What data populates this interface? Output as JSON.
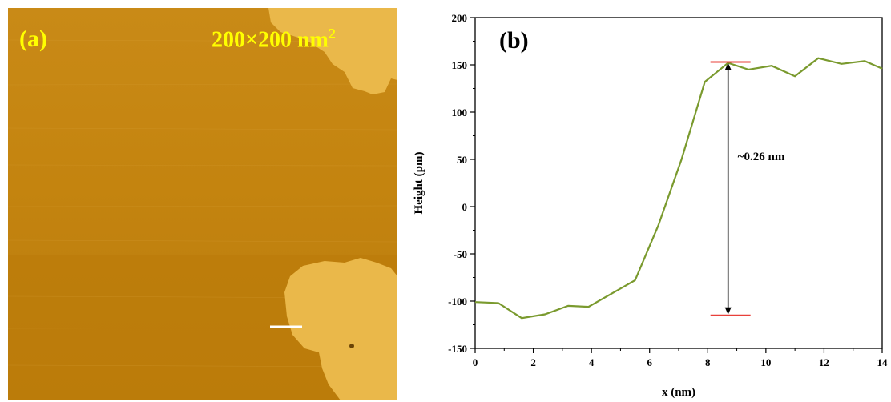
{
  "panel_a": {
    "label": "(a)",
    "scale_label": "200×200 nm",
    "scale_sup": "2"
  },
  "chart_data": {
    "type": "line",
    "panel_label": "(b)",
    "xlabel": "x (nm)",
    "ylabel": "Height (pm)",
    "xlim": [
      0,
      14
    ],
    "ylim": [
      -150,
      200
    ],
    "xticks": [
      0,
      2,
      4,
      6,
      8,
      10,
      12,
      14
    ],
    "yticks": [
      -150,
      -100,
      -50,
      0,
      50,
      100,
      150,
      200
    ],
    "series": [
      {
        "color": "#7a9a2e",
        "x": [
          0,
          0.8,
          1.6,
          2.4,
          3.2,
          3.9,
          4.7,
          5.5,
          6.3,
          7.1,
          7.9,
          8.7,
          9.4,
          10.2,
          11.0,
          11.8,
          12.6,
          13.4,
          14.0
        ],
        "y": [
          -101,
          -102,
          -118,
          -114,
          -105,
          -106,
          -92,
          -78,
          -20,
          50,
          132,
          152,
          145,
          149,
          138,
          157,
          151,
          154,
          146
        ]
      }
    ],
    "annotation": {
      "text": "~0.26 nm",
      "x": 8.7,
      "y_top": 153,
      "y_bottom": -115,
      "marker_color": "#e8403a"
    }
  }
}
